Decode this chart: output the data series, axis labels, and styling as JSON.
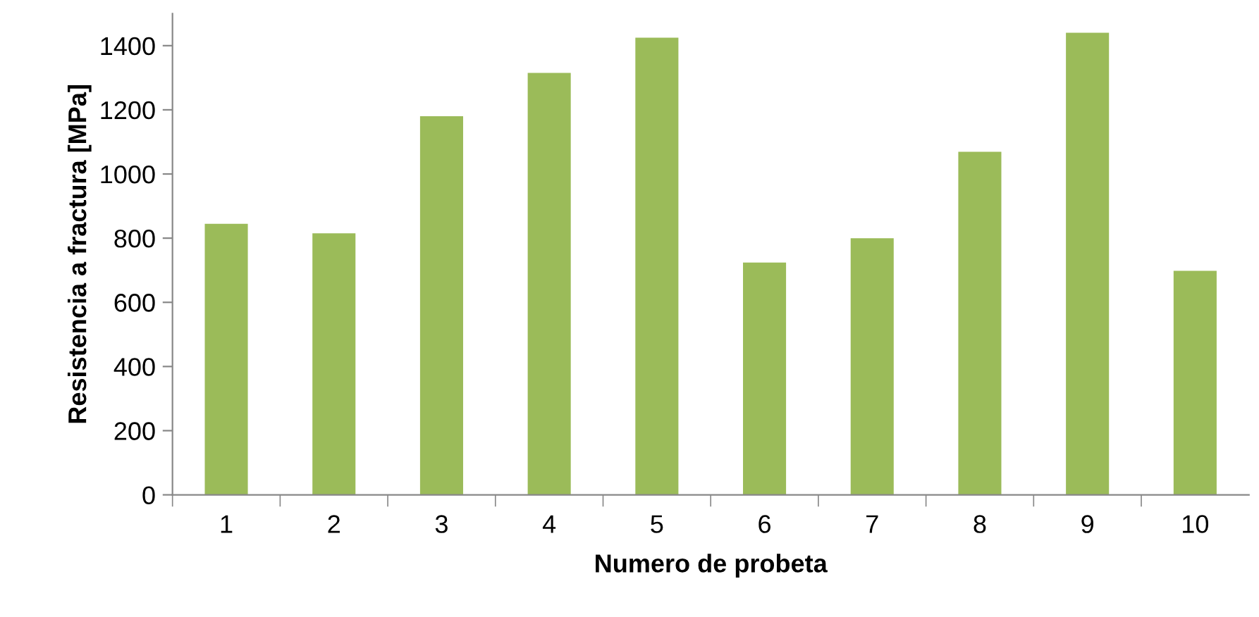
{
  "chart_data": {
    "type": "bar",
    "xlabel": "Numero de probeta",
    "ylabel": "Resistencia a fractura [MPa]",
    "categories": [
      "1",
      "2",
      "3",
      "4",
      "5",
      "6",
      "7",
      "8",
      "9",
      "10"
    ],
    "values": [
      845,
      815,
      1180,
      1315,
      1425,
      724,
      800,
      1069,
      1440,
      698
    ],
    "color": "#9bbb59",
    "ylim": [
      0,
      1500
    ],
    "yticks": [
      0,
      200,
      400,
      600,
      800,
      1000,
      1200,
      1400
    ],
    "grid": false,
    "legend": false
  }
}
